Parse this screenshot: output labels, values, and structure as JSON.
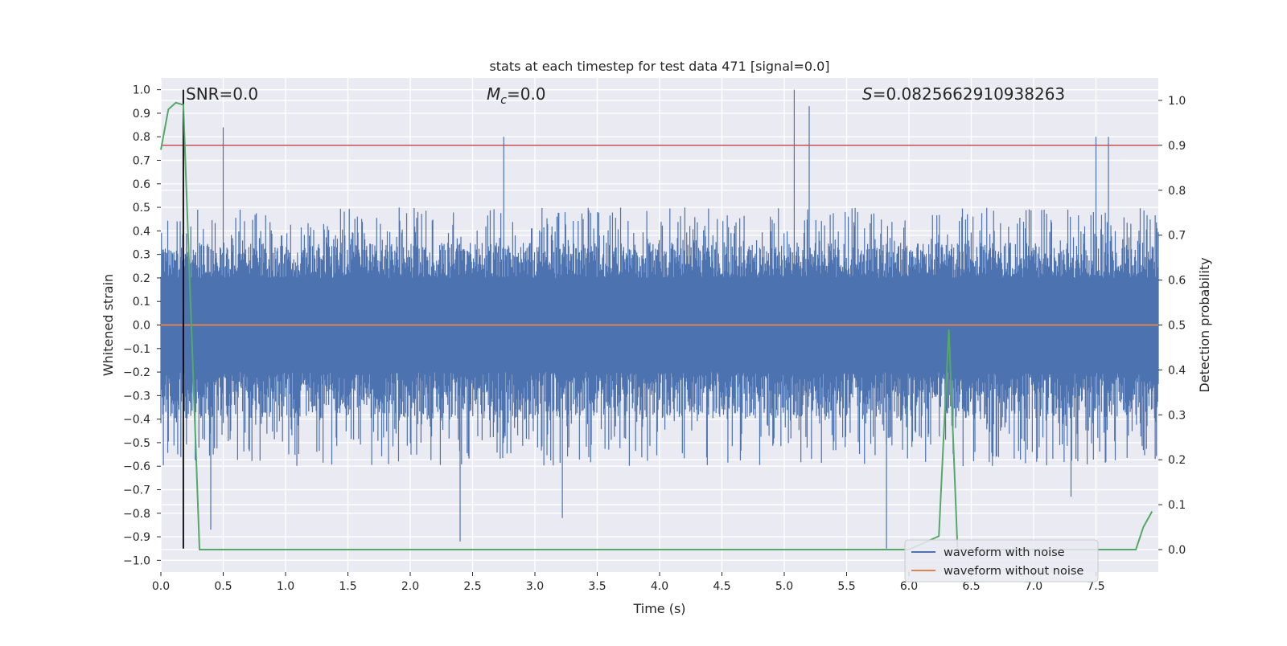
{
  "chart_data": {
    "type": "line",
    "title": "stats at each timestep for test data 471 [signal=0.0]",
    "xlabel": "Time (s)",
    "ylabel": "Whitened strain",
    "y2label": "Detection probability",
    "xlim": [
      0.0,
      8.0
    ],
    "ylim": [
      -1.05,
      1.05
    ],
    "y2lim": [
      -0.05,
      1.05
    ],
    "x_ticks": [
      "0.0",
      "0.5",
      "1.0",
      "1.5",
      "2.0",
      "2.5",
      "3.0",
      "3.5",
      "4.0",
      "4.5",
      "5.0",
      "5.5",
      "6.0",
      "6.5",
      "7.0",
      "7.5"
    ],
    "y_ticks": [
      "1.0",
      "0.9",
      "0.8",
      "0.7",
      "0.6",
      "0.5",
      "0.4",
      "0.3",
      "0.2",
      "0.1",
      "0.0",
      "−0.1",
      "−0.2",
      "−0.3",
      "−0.4",
      "−0.5",
      "−0.6",
      "−0.7",
      "−0.8",
      "−0.9",
      "−1.0"
    ],
    "y2_ticks": [
      "1.0",
      "0.9",
      "0.8",
      "0.7",
      "0.6",
      "0.5",
      "0.4",
      "0.3",
      "0.2",
      "0.1",
      "0.0"
    ],
    "grid": true,
    "legend_position": "lower-right",
    "annotations": {
      "snr": "SNR=0.0",
      "mc_symbol": "M",
      "mc_sub": "c",
      "mc_value": "=0.0",
      "s_symbol": "S",
      "s_value": "=0.0825662910938263"
    },
    "threshold_line": {
      "axis": "y2",
      "value": 0.9,
      "color": "#c44e52"
    },
    "marker_line": {
      "x": 0.18,
      "y_from": -0.95,
      "y_to": 1.0,
      "color": "#000000"
    },
    "series": [
      {
        "name": "waveform with noise",
        "axis": "y",
        "color": "#4c72b0",
        "kind": "noise",
        "sample_count": 1600,
        "typical_upper": [
          0.2,
          0.5
        ],
        "typical_lower": [
          -0.2,
          -0.6
        ],
        "spikes": [
          {
            "x": 0.5,
            "y": 0.84
          },
          {
            "x": 2.75,
            "y": 0.8
          },
          {
            "x": 5.08,
            "y": 1.0
          },
          {
            "x": 5.2,
            "y": 0.93
          },
          {
            "x": 7.5,
            "y": 0.8
          },
          {
            "x": 7.6,
            "y": 0.8
          },
          {
            "x": 2.4,
            "y": -0.92
          },
          {
            "x": 5.82,
            "y": -0.95
          },
          {
            "x": 0.4,
            "y": -0.87
          },
          {
            "x": 3.22,
            "y": -0.82
          },
          {
            "x": 7.3,
            "y": -0.73
          }
        ]
      },
      {
        "name": "waveform without noise",
        "axis": "y",
        "color": "#dd8452",
        "x": [
          0.0,
          8.0
        ],
        "y": [
          0.0,
          0.0
        ]
      },
      {
        "name": "detection probability",
        "axis": "y2",
        "color": "#55a868",
        "x": [
          0.0,
          0.06,
          0.12,
          0.18,
          0.31,
          0.5,
          1.0,
          2.0,
          3.0,
          4.0,
          5.0,
          6.0,
          6.24,
          6.32,
          6.39,
          6.5,
          7.0,
          7.5,
          7.82,
          7.88,
          7.95
        ],
        "y": [
          0.89,
          0.98,
          0.995,
          0.99,
          0.0,
          0.0,
          0.0,
          0.0,
          0.0,
          0.0,
          0.0,
          0.0,
          0.03,
          0.49,
          0.0,
          0.0,
          0.0,
          0.0,
          0.0,
          0.05,
          0.085
        ]
      }
    ],
    "colors": {
      "plot_bg": "#eaeaf2",
      "grid": "#ffffff",
      "legend_bg": "#eaeaf2",
      "legend_border": "#cccccc",
      "text": "#262626"
    }
  }
}
